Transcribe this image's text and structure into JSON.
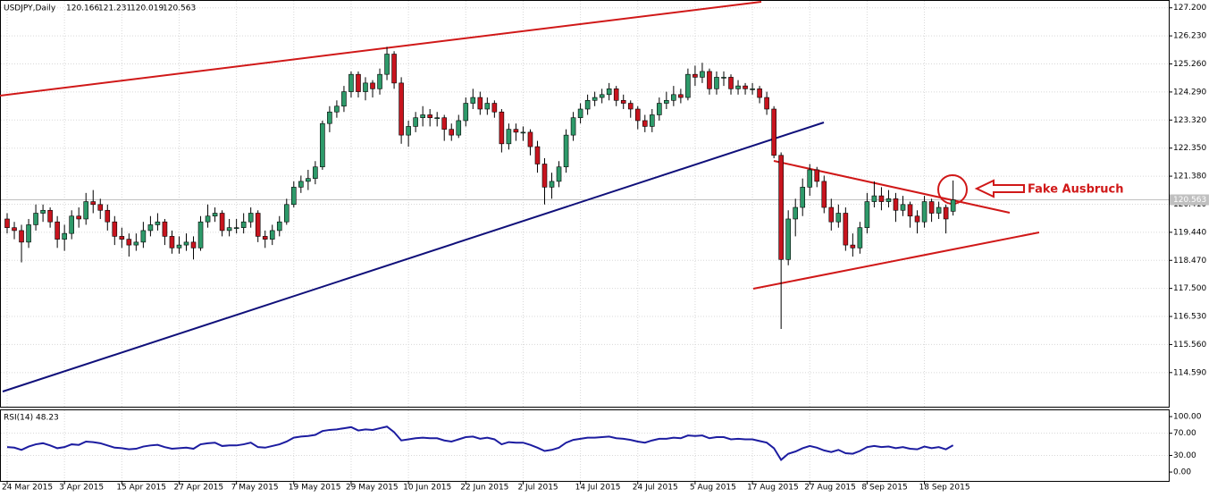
{
  "chart_data": {
    "type": "candlestick",
    "title": "USDJPY,Daily",
    "ylim": [
      113.41,
      127.47
    ],
    "yticks": [
      {
        "value": 127.2,
        "label": "127.200"
      },
      {
        "value": 126.23,
        "label": "126.230"
      },
      {
        "value": 125.26,
        "label": "125.260"
      },
      {
        "value": 124.29,
        "label": "124.290"
      },
      {
        "value": 123.32,
        "label": "123.320"
      },
      {
        "value": 122.35,
        "label": "122.350"
      },
      {
        "value": 121.38,
        "label": "121.380"
      },
      {
        "value": 120.41,
        "label": "120.410"
      },
      {
        "value": 119.44,
        "label": "119.440"
      },
      {
        "value": 118.47,
        "label": "118.470"
      },
      {
        "value": 117.5,
        "label": "117.500"
      },
      {
        "value": 116.53,
        "label": "116.530"
      },
      {
        "value": 115.56,
        "label": "115.560"
      },
      {
        "value": 114.59,
        "label": "114.590"
      }
    ],
    "grid": true,
    "up_color": "#2e9a6a",
    "down_color": "#c8141e",
    "annotation": "Fake Ausbruch",
    "categories": [
      "24 Mar 2015",
      null,
      null,
      null,
      null,
      null,
      null,
      null,
      "3 Apr 2015",
      null,
      null,
      null,
      null,
      null,
      null,
      null,
      "15 Apr 2015",
      null,
      null,
      null,
      null,
      null,
      null,
      null,
      "27 Apr 2015",
      null,
      null,
      null,
      null,
      null,
      null,
      null,
      "7 May 2015",
      null,
      null,
      null,
      null,
      null,
      null,
      null,
      "19 May 2015",
      null,
      null,
      null,
      null,
      null,
      null,
      null,
      "29 May 2015",
      null,
      null,
      null,
      null,
      null,
      null,
      null,
      "10 Jun 2015",
      null,
      null,
      null,
      null,
      null,
      null,
      null,
      "22 Jun 2015",
      null,
      null,
      null,
      null,
      null,
      null,
      null,
      "2 Jul 2015",
      null,
      null,
      null,
      null,
      null,
      null,
      null,
      "14 Jul 2015",
      null,
      null,
      null,
      null,
      null,
      null,
      null,
      "24 Jul 2015",
      null,
      null,
      null,
      null,
      null,
      null,
      null,
      "5 Aug 2015",
      null,
      null,
      null,
      null,
      null,
      null,
      null,
      "17 Aug 2015",
      null,
      null,
      null,
      null,
      null,
      null,
      null,
      "27 Aug 2015",
      null,
      null,
      null,
      null,
      null,
      null,
      null,
      "8 Sep 2015",
      null,
      null,
      null,
      null,
      null,
      null,
      null,
      "18 Sep 2015",
      null,
      null,
      null,
      null
    ],
    "ohlc": [
      [
        119.9,
        120.1,
        119.4,
        119.6
      ],
      [
        119.6,
        119.8,
        119.2,
        119.5
      ],
      [
        119.5,
        119.7,
        118.4,
        119.1
      ],
      [
        119.1,
        119.9,
        118.9,
        119.7
      ],
      [
        119.7,
        120.4,
        119.5,
        120.1
      ],
      [
        120.1,
        120.4,
        119.8,
        120.2
      ],
      [
        120.2,
        120.3,
        119.6,
        119.8
      ],
      [
        119.8,
        120.0,
        118.9,
        119.2
      ],
      [
        119.2,
        119.7,
        118.8,
        119.4
      ],
      [
        119.4,
        120.2,
        119.2,
        120.0
      ],
      [
        120.0,
        120.3,
        119.6,
        119.9
      ],
      [
        119.9,
        120.8,
        119.7,
        120.5
      ],
      [
        120.5,
        120.9,
        120.1,
        120.4
      ],
      [
        120.4,
        120.6,
        119.9,
        120.2
      ],
      [
        120.2,
        120.4,
        119.5,
        119.8
      ],
      [
        119.8,
        120.0,
        119.0,
        119.3
      ],
      [
        119.3,
        119.6,
        118.9,
        119.2
      ],
      [
        119.2,
        119.4,
        118.6,
        119.0
      ],
      [
        119.0,
        119.4,
        118.8,
        119.1
      ],
      [
        119.1,
        119.8,
        118.9,
        119.5
      ],
      [
        119.5,
        120.0,
        119.3,
        119.7
      ],
      [
        119.7,
        120.1,
        119.5,
        119.8
      ],
      [
        119.8,
        119.9,
        119.0,
        119.3
      ],
      [
        119.3,
        119.5,
        118.7,
        118.9
      ],
      [
        118.9,
        119.3,
        118.7,
        119.0
      ],
      [
        119.0,
        119.4,
        118.8,
        119.1
      ],
      [
        119.1,
        119.3,
        118.5,
        118.9
      ],
      [
        118.9,
        120.0,
        118.8,
        119.8
      ],
      [
        119.8,
        120.4,
        119.6,
        120.0
      ],
      [
        120.0,
        120.3,
        119.8,
        120.1
      ],
      [
        120.1,
        120.2,
        119.3,
        119.5
      ],
      [
        119.5,
        119.9,
        119.3,
        119.6
      ],
      [
        119.6,
        119.9,
        119.4,
        119.6
      ],
      [
        119.6,
        120.1,
        119.4,
        119.8
      ],
      [
        119.8,
        120.3,
        119.6,
        120.1
      ],
      [
        120.1,
        120.2,
        119.1,
        119.3
      ],
      [
        119.3,
        119.5,
        118.9,
        119.2
      ],
      [
        119.2,
        119.7,
        119.0,
        119.5
      ],
      [
        119.5,
        120.0,
        119.3,
        119.8
      ],
      [
        119.8,
        120.6,
        119.7,
        120.4
      ],
      [
        120.4,
        121.2,
        120.3,
        121.0
      ],
      [
        121.0,
        121.4,
        120.8,
        121.2
      ],
      [
        121.2,
        121.6,
        120.9,
        121.3
      ],
      [
        121.3,
        121.9,
        121.1,
        121.7
      ],
      [
        121.7,
        123.3,
        121.6,
        123.2
      ],
      [
        123.2,
        123.8,
        122.9,
        123.6
      ],
      [
        123.6,
        124.0,
        123.4,
        123.8
      ],
      [
        123.8,
        124.5,
        123.6,
        124.3
      ],
      [
        124.3,
        125.0,
        124.1,
        124.9
      ],
      [
        124.9,
        125.0,
        124.1,
        124.3
      ],
      [
        124.3,
        124.8,
        124.0,
        124.6
      ],
      [
        124.6,
        124.7,
        124.1,
        124.4
      ],
      [
        124.4,
        125.1,
        124.2,
        124.9
      ],
      [
        124.9,
        125.85,
        124.7,
        125.6
      ],
      [
        125.6,
        125.7,
        124.4,
        124.6
      ],
      [
        124.6,
        124.8,
        122.5,
        122.8
      ],
      [
        122.8,
        123.3,
        122.4,
        123.1
      ],
      [
        123.1,
        123.6,
        122.9,
        123.4
      ],
      [
        123.4,
        123.8,
        123.1,
        123.5
      ],
      [
        123.5,
        123.7,
        123.1,
        123.4
      ],
      [
        123.4,
        123.6,
        123.1,
        123.4
      ],
      [
        123.4,
        123.5,
        122.6,
        123.0
      ],
      [
        123.0,
        123.2,
        122.6,
        122.8
      ],
      [
        122.8,
        123.5,
        122.7,
        123.3
      ],
      [
        123.3,
        124.1,
        123.1,
        123.9
      ],
      [
        123.9,
        124.4,
        123.7,
        124.1
      ],
      [
        124.1,
        124.3,
        123.5,
        123.7
      ],
      [
        123.7,
        124.1,
        123.5,
        123.9
      ],
      [
        123.9,
        124.0,
        123.4,
        123.6
      ],
      [
        123.6,
        123.7,
        122.2,
        122.5
      ],
      [
        122.5,
        123.2,
        122.3,
        123.0
      ],
      [
        123.0,
        123.2,
        122.6,
        122.9
      ],
      [
        122.9,
        123.1,
        122.6,
        122.9
      ],
      [
        122.9,
        123.0,
        122.1,
        122.4
      ],
      [
        122.4,
        122.6,
        121.5,
        121.8
      ],
      [
        121.8,
        122.0,
        120.4,
        121.0
      ],
      [
        121.0,
        121.5,
        120.6,
        121.2
      ],
      [
        121.2,
        121.9,
        121.0,
        121.7
      ],
      [
        121.7,
        123.0,
        121.5,
        122.8
      ],
      [
        122.8,
        123.6,
        122.6,
        123.4
      ],
      [
        123.4,
        123.9,
        123.2,
        123.7
      ],
      [
        123.7,
        124.2,
        123.5,
        124.0
      ],
      [
        124.0,
        124.3,
        123.8,
        124.1
      ],
      [
        124.1,
        124.4,
        123.9,
        124.2
      ],
      [
        124.2,
        124.6,
        124.0,
        124.4
      ],
      [
        124.4,
        124.5,
        123.8,
        124.0
      ],
      [
        124.0,
        124.2,
        123.7,
        123.9
      ],
      [
        123.9,
        124.0,
        123.4,
        123.7
      ],
      [
        123.7,
        123.8,
        123.0,
        123.3
      ],
      [
        123.3,
        123.5,
        122.9,
        123.1
      ],
      [
        123.1,
        123.7,
        122.9,
        123.5
      ],
      [
        123.5,
        124.1,
        123.3,
        123.9
      ],
      [
        123.9,
        124.3,
        123.7,
        124.0
      ],
      [
        124.0,
        124.5,
        123.8,
        124.2
      ],
      [
        124.2,
        124.4,
        123.9,
        124.1
      ],
      [
        124.1,
        125.1,
        124.0,
        124.9
      ],
      [
        124.9,
        125.2,
        124.5,
        124.8
      ],
      [
        124.8,
        125.3,
        124.6,
        125.0
      ],
      [
        125.0,
        125.1,
        124.2,
        124.4
      ],
      [
        124.4,
        125.0,
        124.2,
        124.8
      ],
      [
        124.8,
        125.0,
        124.5,
        124.8
      ],
      [
        124.8,
        124.9,
        124.2,
        124.4
      ],
      [
        124.4,
        124.7,
        124.2,
        124.5
      ],
      [
        124.5,
        124.6,
        124.2,
        124.4
      ],
      [
        124.4,
        124.6,
        124.2,
        124.4
      ],
      [
        124.4,
        124.5,
        123.9,
        124.1
      ],
      [
        124.1,
        124.3,
        123.5,
        123.7
      ],
      [
        123.7,
        123.8,
        122.0,
        122.1
      ],
      [
        122.1,
        122.2,
        116.1,
        118.5
      ],
      [
        118.5,
        120.2,
        118.3,
        119.9
      ],
      [
        119.9,
        120.6,
        119.3,
        120.3
      ],
      [
        120.3,
        121.3,
        120.0,
        121.0
      ],
      [
        121.0,
        121.8,
        120.7,
        121.6
      ],
      [
        121.6,
        121.7,
        121.0,
        121.2
      ],
      [
        121.2,
        121.4,
        120.1,
        120.3
      ],
      [
        120.3,
        120.6,
        119.5,
        119.8
      ],
      [
        119.8,
        120.4,
        119.6,
        120.1
      ],
      [
        120.1,
        120.3,
        118.8,
        119.0
      ],
      [
        119.0,
        119.4,
        118.6,
        118.9
      ],
      [
        118.9,
        119.8,
        118.7,
        119.6
      ],
      [
        119.6,
        120.8,
        119.4,
        120.5
      ],
      [
        120.5,
        121.2,
        120.3,
        120.7
      ],
      [
        120.7,
        121.0,
        120.2,
        120.5
      ],
      [
        120.5,
        120.9,
        120.3,
        120.6
      ],
      [
        120.6,
        120.8,
        119.8,
        120.2
      ],
      [
        120.2,
        120.7,
        120.0,
        120.4
      ],
      [
        120.4,
        120.5,
        119.6,
        120.0
      ],
      [
        120.0,
        120.2,
        119.4,
        119.8
      ],
      [
        119.8,
        120.7,
        119.6,
        120.5
      ],
      [
        120.5,
        120.6,
        119.8,
        120.1
      ],
      [
        120.1,
        120.5,
        119.9,
        120.3
      ],
      [
        120.3,
        120.4,
        119.4,
        119.9
      ],
      [
        120.166,
        121.231,
        120.019,
        120.563
      ]
    ],
    "rsi": {
      "title": "RSI(14)",
      "color": "#1c1ca0",
      "ylim": [
        -16,
        113
      ],
      "yticks": [
        {
          "value": 100,
          "label": "100.00"
        },
        {
          "value": 70,
          "label": "70.00"
        },
        {
          "value": 30,
          "label": "30.00"
        },
        {
          "value": 0,
          "label": "0.00"
        }
      ],
      "values": [
        45,
        44,
        40,
        46,
        50,
        52,
        48,
        43,
        45,
        50,
        49,
        55,
        54,
        52,
        48,
        44,
        43,
        41,
        42,
        46,
        48,
        49,
        45,
        42,
        43,
        44,
        42,
        50,
        52,
        53,
        47,
        48,
        48,
        50,
        53,
        45,
        44,
        47,
        50,
        55,
        62,
        64,
        65,
        67,
        74,
        76,
        77,
        79,
        81,
        75,
        77,
        76,
        79,
        82,
        72,
        57,
        59,
        61,
        62,
        61,
        61,
        57,
        55,
        59,
        63,
        64,
        60,
        62,
        59,
        50,
        54,
        53,
        53,
        49,
        44,
        38,
        40,
        44,
        53,
        58,
        60,
        62,
        62,
        63,
        64,
        61,
        60,
        58,
        55,
        53,
        57,
        60,
        60,
        62,
        61,
        66,
        65,
        66,
        61,
        63,
        63,
        59,
        60,
        59,
        59,
        56,
        53,
        43,
        22,
        33,
        37,
        43,
        47,
        44,
        39,
        36,
        40,
        34,
        33,
        38,
        45,
        47,
        45,
        46,
        43,
        45,
        42,
        41,
        46,
        43,
        45,
        41,
        48.23
      ]
    }
  }
}
